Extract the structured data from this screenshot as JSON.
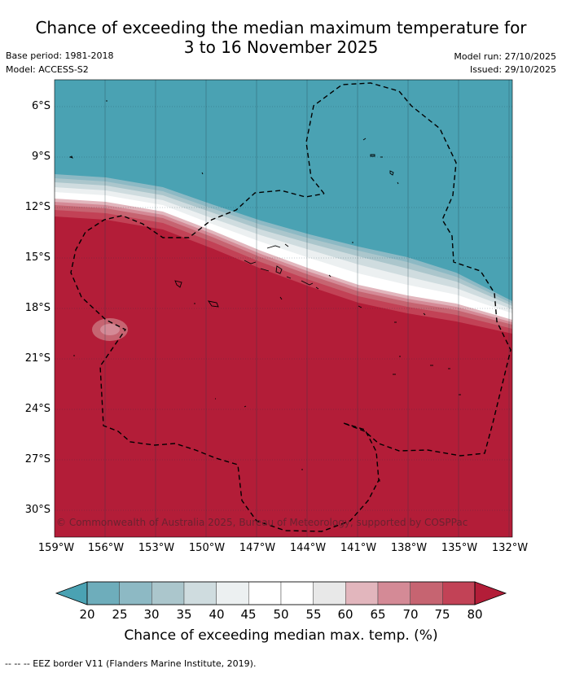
{
  "header": {
    "title_line1": "Chance of exceeding the median maximum temperature for",
    "title_line2": "3 to 16 November 2025",
    "base_period": "Base period: 1981-2018",
    "model": "Model: ACCESS-S2",
    "model_run": "Model run: 27/10/2025",
    "issued": "Issued: 29/10/2025"
  },
  "map": {
    "lat_labels": [
      "6°S",
      "9°S",
      "12°S",
      "15°S",
      "18°S",
      "21°S",
      "24°S",
      "27°S",
      "30°S"
    ],
    "lon_labels": [
      "159°W",
      "156°W",
      "153°W",
      "150°W",
      "147°W",
      "144°W",
      "141°W",
      "138°W",
      "135°W",
      "132°W"
    ],
    "copyright": "© Commonwealth of Australia 2025, Bureau of Meteorology, supported by COSPPac",
    "colors": {
      "low": "#4aa2b3",
      "high": "#b31d38",
      "grid": "#1e3a44"
    }
  },
  "colorbar": {
    "ticks": [
      "20",
      "25",
      "30",
      "35",
      "40",
      "45",
      "50",
      "55",
      "60",
      "65",
      "70",
      "75",
      "80"
    ],
    "title": "Chance of exceeding median max. temp. (%)",
    "colors": [
      "#4aa2b3",
      "#6eadbb",
      "#8db9c4",
      "#abc6cc",
      "#cfdcdf",
      "#ecf0f1",
      "#ffffff",
      "#ffffff",
      "#e8e8e8",
      "#e2b6bd",
      "#d48a96",
      "#c66471",
      "#c24256",
      "#b31d38"
    ]
  },
  "legend": {
    "eez_note": "--  --  -- EEZ border V11 (Flanders Marine Institute, 2019)."
  }
}
